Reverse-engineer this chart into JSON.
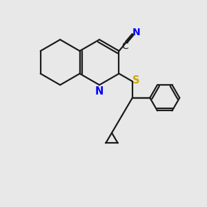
{
  "bg_color": "#e8e8e8",
  "bond_color": "#1a1a1a",
  "n_color": "#0000ff",
  "s_color": "#ccaa00",
  "font_size": 10.5,
  "bond_width": 1.6,
  "xlim": [
    0,
    10
  ],
  "ylim": [
    0,
    10
  ]
}
